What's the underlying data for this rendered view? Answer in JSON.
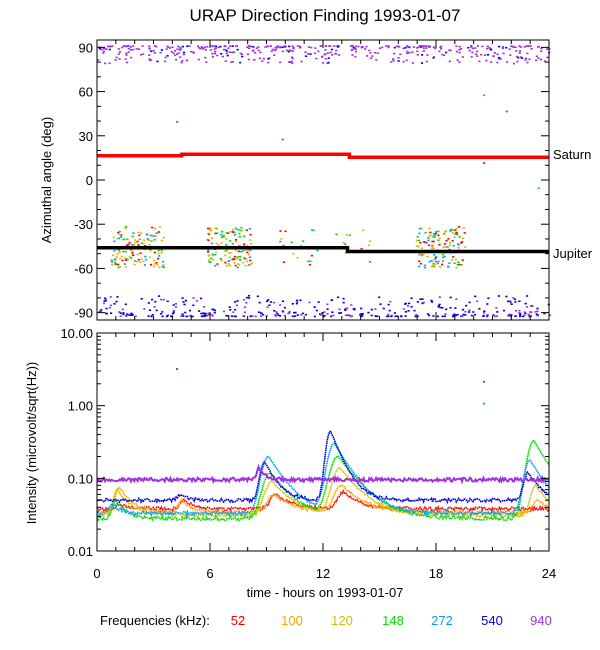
{
  "title": "URAP Direction Finding  1993-01-07",
  "chart_data": [
    {
      "type": "scatter",
      "panel": "azimuth",
      "ylabel": "Azimuthal angle (deg)",
      "xlim": [
        0,
        24
      ],
      "ylim": [
        -95,
        95
      ],
      "yticks": [
        90,
        60,
        30,
        0,
        -30,
        -60,
        -90
      ],
      "ytick_labels": [
        "90",
        "60",
        "30",
        "0",
        "-30",
        "-60",
        "-90"
      ],
      "xticks": [
        0,
        6,
        12,
        18,
        24
      ],
      "reference_lines": [
        {
          "name": "Saturn",
          "color": "#ff0000",
          "points": [
            [
              0,
              16.5
            ],
            [
              4.5,
              16.5
            ],
            [
              4.5,
              17.5
            ],
            [
              13.4,
              17.5
            ],
            [
              13.4,
              15.5
            ],
            [
              24,
              15.5
            ]
          ]
        },
        {
          "name": "Jupiter",
          "color": "#000000",
          "points": [
            [
              0,
              -46
            ],
            [
              13.3,
              -46
            ],
            [
              13.3,
              -48.5
            ],
            [
              24,
              -48.5
            ]
          ]
        }
      ]
    },
    {
      "type": "line",
      "panel": "intensity",
      "ylabel": "Intensity (microvolt/sqrt(Hz))",
      "xlabel": "time - hours on 1993-01-07",
      "xlim": [
        0,
        24
      ],
      "yscale": "log",
      "ylim": [
        0.01,
        10
      ],
      "yticks": [
        10,
        1,
        0.1,
        0.01
      ],
      "ytick_labels": [
        "10.00",
        "1.00",
        "0.10",
        "0.01"
      ],
      "xticks": [
        0,
        6,
        12,
        18,
        24
      ],
      "xtick_labels": [
        "0",
        "6",
        "12",
        "18",
        "24"
      ],
      "series": [
        {
          "name": "52",
          "color": "#ff0000",
          "baseline": 0.038,
          "bursts": [
            [
              1.2,
              0.045,
              0.5
            ],
            [
              4.6,
              0.05,
              0.5
            ],
            [
              9.5,
              0.06,
              0.8
            ],
            [
              13.1,
              0.065,
              0.8
            ]
          ]
        },
        {
          "name": "100",
          "color": "#ffa500",
          "baseline": 0.034,
          "bursts": [
            [
              1.2,
              0.075,
              0.6
            ],
            [
              4.5,
              0.05,
              0.5
            ],
            [
              9.4,
              0.06,
              0.9
            ],
            [
              13.0,
              0.08,
              1.0
            ],
            [
              23.4,
              0.05,
              0.6
            ]
          ]
        },
        {
          "name": "120",
          "color": "#d4c000",
          "baseline": 0.031,
          "bursts": [
            [
              1.1,
              0.07,
              0.6
            ],
            [
              9.3,
              0.09,
              1.0
            ],
            [
              12.9,
              0.14,
              1.0
            ],
            [
              23.3,
              0.08,
              0.7
            ]
          ]
        },
        {
          "name": "148",
          "color": "#00e000",
          "baseline": 0.028,
          "bursts": [
            [
              1.0,
              0.05,
              0.5
            ],
            [
              9.2,
              0.12,
              1.0
            ],
            [
              12.8,
              0.2,
              1.1
            ],
            [
              23.2,
              0.33,
              0.9
            ]
          ]
        },
        {
          "name": "272",
          "color": "#00a0ff",
          "baseline": 0.033,
          "bursts": [
            [
              0.8,
              0.045,
              0.4
            ],
            [
              9.1,
              0.2,
              0.9
            ],
            [
              12.6,
              0.3,
              0.9
            ],
            [
              23.0,
              0.18,
              0.8
            ]
          ]
        },
        {
          "name": "540",
          "color": "#0000e0",
          "baseline": 0.05,
          "bursts": [
            [
              4.4,
              0.06,
              0.4
            ],
            [
              8.9,
              0.17,
              0.6
            ],
            [
              12.4,
              0.45,
              0.6
            ],
            [
              22.9,
              0.12,
              0.6
            ]
          ]
        },
        {
          "name": "940",
          "color": "#a030e0",
          "baseline": 0.096,
          "bursts": [
            [
              8.6,
              0.14,
              0.3
            ]
          ]
        }
      ]
    }
  ],
  "labels": {
    "frequencies_prefix": "Frequencies (kHz):"
  },
  "frequencies": [
    {
      "label": "52",
      "color": "#ff0000"
    },
    {
      "label": "100",
      "color": "#ffa500"
    },
    {
      "label": "120",
      "color": "#d4c000"
    },
    {
      "label": "148",
      "color": "#00e000"
    },
    {
      "label": "272",
      "color": "#00a0ff"
    },
    {
      "label": "540",
      "color": "#0000e0"
    },
    {
      "label": "940",
      "color": "#a030e0"
    }
  ]
}
